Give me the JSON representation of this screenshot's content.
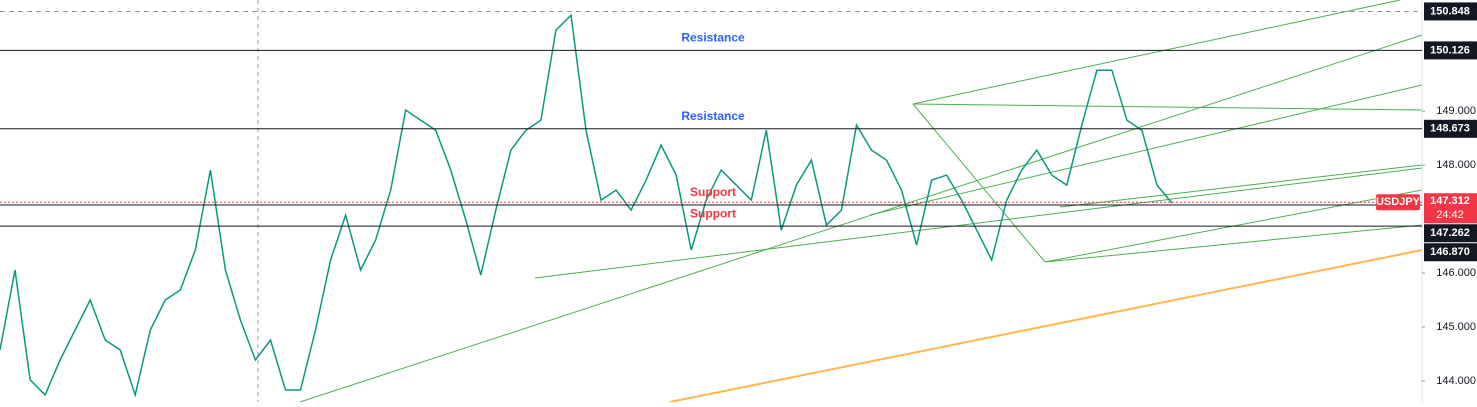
{
  "chart_data": {
    "type": "line",
    "symbol": "USDJPY",
    "countdown": "24:42",
    "color": "#089981",
    "price": {
      "value": 147.312,
      "label": "147.312",
      "color": "#f23645"
    },
    "ylim": [
      143.61,
      151.06
    ],
    "yticks": [
      {
        "value": 144,
        "label": "144.000"
      },
      {
        "value": 145,
        "label": "145.000"
      },
      {
        "value": 146,
        "label": "146.000"
      },
      {
        "value": 148,
        "label": "148.000"
      },
      {
        "value": 149,
        "label": "149.000"
      }
    ],
    "levels": [
      {
        "value": 150.848,
        "label": "150.848",
        "style": "dashed"
      },
      {
        "value": 150.126,
        "label": "150.126",
        "style": "solid"
      },
      {
        "value": 148.673,
        "label": "148.673",
        "style": "solid"
      },
      {
        "value": 147.262,
        "label": "147.262",
        "style": "solid"
      },
      {
        "value": 146.87,
        "label": "146.870",
        "style": "solid"
      }
    ],
    "annotations": [
      {
        "text": "Resistance",
        "value": 150.126,
        "color": "#2962ff"
      },
      {
        "text": "Resistance",
        "value": 148.673,
        "color": "#2962ff"
      },
      {
        "text": "Support",
        "value": 147.262,
        "color": "#f23645"
      },
      {
        "text": "Support",
        "value": 146.87,
        "color": "#f23645"
      }
    ],
    "values": [
      144.574,
      146.056,
      144.019,
      143.741,
      144.389,
      144.944,
      145.5,
      144.759,
      144.574,
      143.741,
      144.944,
      145.5,
      145.685,
      146.426,
      147.907,
      146.056,
      145.13,
      144.389,
      144.759,
      143.833,
      143.833,
      144.944,
      146.241,
      147.074,
      146.056,
      146.611,
      147.537,
      149.019,
      148.833,
      148.648,
      147.907,
      146.981,
      145.963,
      147.167,
      148.278,
      148.648,
      148.833,
      150.5,
      150.778,
      148.648,
      147.352,
      147.537,
      147.167,
      147.722,
      148.37,
      147.815,
      146.426,
      147.352,
      147.907,
      147.63,
      147.352,
      148.648,
      146.796,
      147.63,
      148.093,
      146.889,
      147.167,
      148.741,
      148.278,
      148.093,
      147.537,
      146.519,
      147.722,
      147.815,
      147.352,
      146.796,
      146.241,
      147.352,
      147.907,
      148.278,
      147.815,
      147.63,
      148.741,
      149.759,
      149.759,
      148.833,
      148.648,
      147.63,
      147.296
    ]
  }
}
